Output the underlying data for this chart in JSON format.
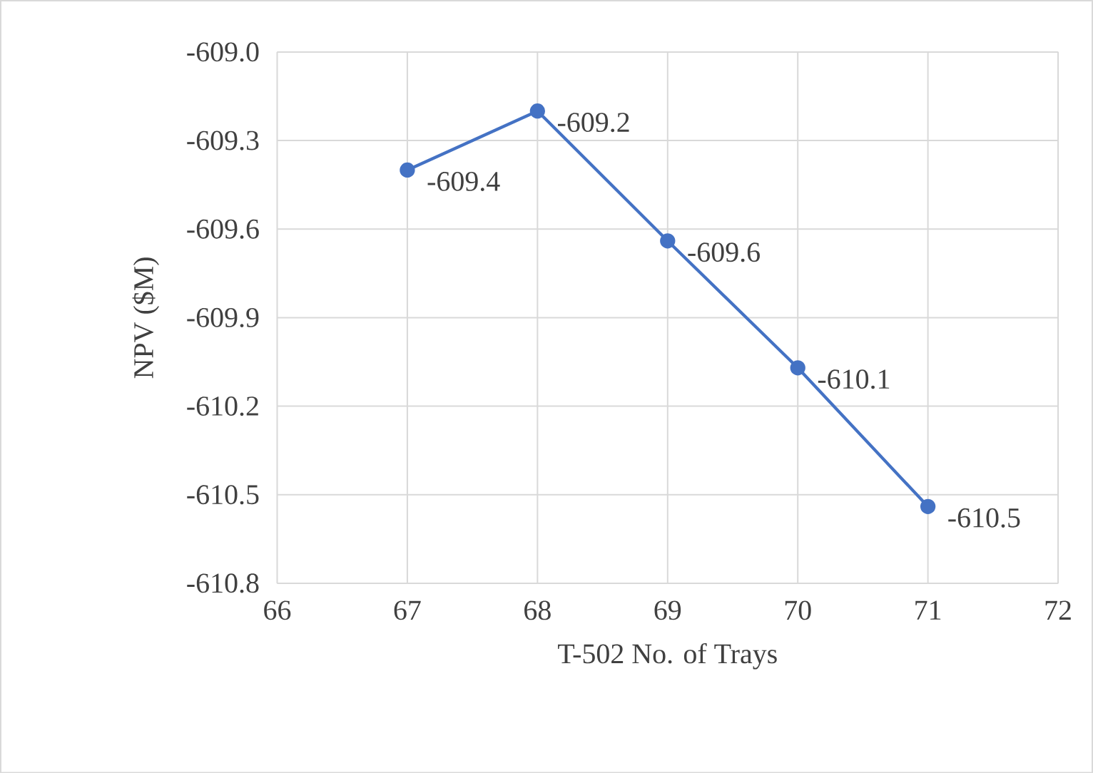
{
  "chart_data": {
    "type": "line",
    "xlabel": "T-502 No. of Trays",
    "ylabel": "NPV ($M)",
    "x": [
      67,
      68,
      69,
      70,
      71
    ],
    "series": [
      {
        "color": "#4472c4",
        "values": [
          -609.4,
          -609.2,
          -609.64,
          -610.07,
          -610.54
        ],
        "value_labels": [
          "-609.4",
          "-609.2",
          "-609.6",
          "-610.1",
          "-610.5"
        ]
      }
    ],
    "xlim": [
      66,
      72
    ],
    "xticks": [
      66,
      67,
      68,
      69,
      70,
      71,
      72
    ],
    "ylim": [
      -610.8,
      -609.0
    ],
    "yticks": [
      {
        "value": -609.0,
        "label": "-609.0"
      },
      {
        "value": -609.3,
        "label": "-609.3"
      },
      {
        "value": -609.6,
        "label": "-609.6"
      },
      {
        "value": -609.9,
        "label": "-609.9"
      },
      {
        "value": -610.2,
        "label": "-610.2"
      },
      {
        "value": -610.5,
        "label": "-610.5"
      },
      {
        "value": -610.8,
        "label": "-610.8"
      }
    ],
    "grid": true,
    "marker": "circle",
    "line_style": "solid"
  }
}
